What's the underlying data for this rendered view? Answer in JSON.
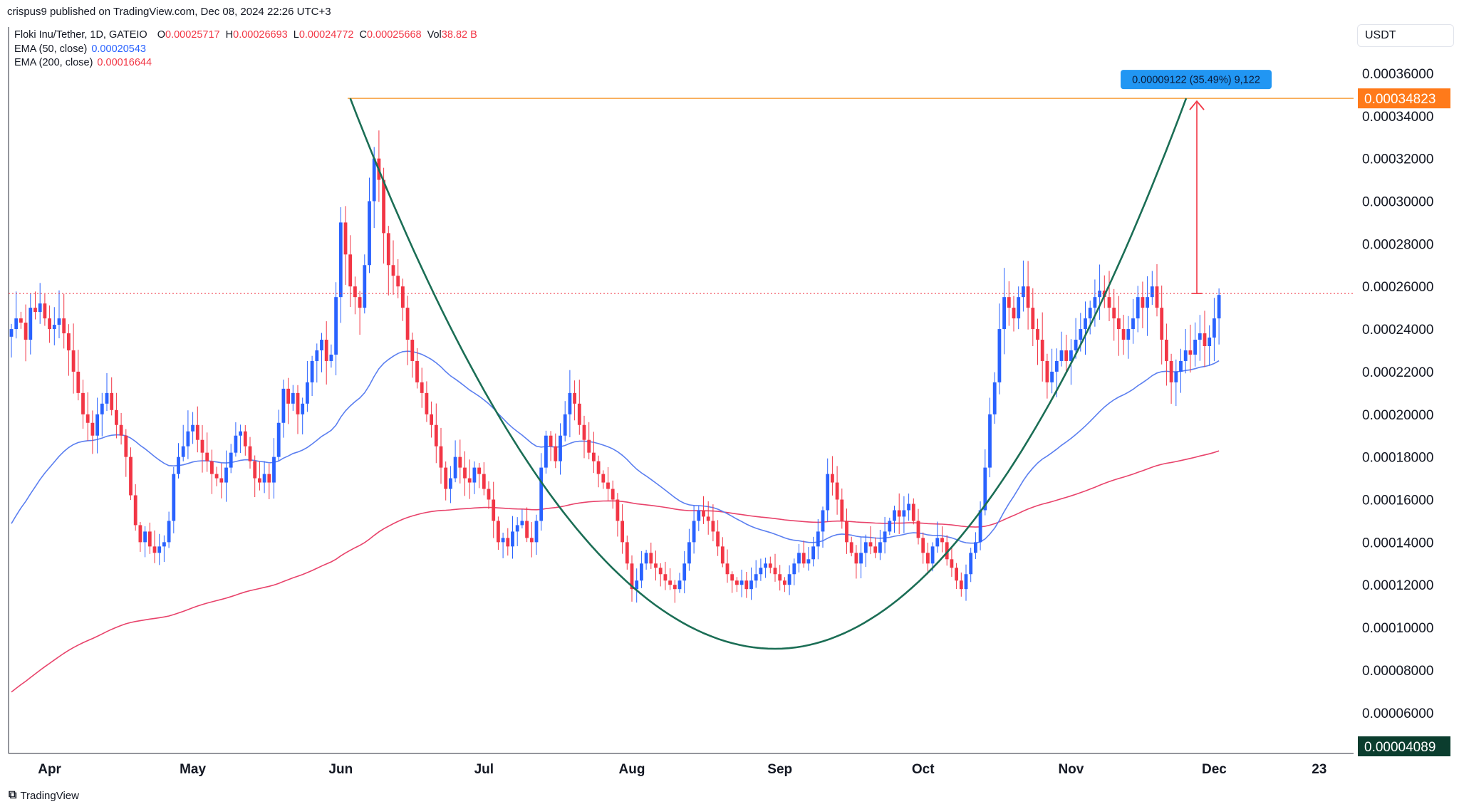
{
  "header": {
    "published_line": "crispus9 published on TradingView.com, Dec 08, 2024 22:26 UTC+3"
  },
  "legend": {
    "symbol": "Floki Inu/Tether, 1D, GATEIO",
    "ohlc": [
      {
        "key": "O",
        "value": "0.00025717"
      },
      {
        "key": "H",
        "value": "0.00026693"
      },
      {
        "key": "L",
        "value": "0.00024772"
      },
      {
        "key": "C",
        "value": "0.00025668"
      },
      {
        "key": "Vol",
        "value": "38.82 B"
      }
    ],
    "ema50_label": "EMA (50, close)",
    "ema50_value": "0.00020543",
    "ema200_label": "EMA (200, close)",
    "ema200_value": "0.00016644"
  },
  "currency": "USDT",
  "footer": {
    "brand": "TradingView"
  },
  "colors": {
    "up": "#2962ff",
    "down": "#f23645",
    "ema50": "#5b7ff0",
    "ema200": "#e8436b",
    "cup": "#1b6e55",
    "resistance": "#f7a13e",
    "measure": "#f23645",
    "price_label": "#ff7a1a",
    "measure_label": "#2196f3",
    "low_label": "#0b3d2e"
  },
  "chart_data": {
    "type": "candlestick",
    "symbol": "Floki Inu/Tether",
    "timeframe": "1D",
    "exchange": "GATEIO",
    "ylim": [
      4.089e-05,
      0.000375
    ],
    "y_ticks": [
      "0.00036000",
      "0.00034000",
      "0.00032000",
      "0.00030000",
      "0.00028000",
      "0.00026000",
      "0.00024000",
      "0.00022000",
      "0.00020000",
      "0.00018000",
      "0.00016000",
      "0.00014000",
      "0.00012000",
      "0.00010000",
      "0.00008000",
      "0.00006000"
    ],
    "x_labels": [
      {
        "label": "Apr",
        "index": 8
      },
      {
        "label": "May",
        "index": 38
      },
      {
        "label": "Jun",
        "index": 69
      },
      {
        "label": "Jul",
        "index": 99
      },
      {
        "label": "Aug",
        "index": 130
      },
      {
        "label": "Sep",
        "index": 161
      },
      {
        "label": "Oct",
        "index": 191
      },
      {
        "label": "Nov",
        "index": 222
      },
      {
        "label": "Dec",
        "index": 252
      },
      {
        "label": "23",
        "index": 274
      }
    ],
    "price_label": "0.00034823",
    "low_label": "0.00004089",
    "resistance_price": 0.00034823,
    "current_price": 0.00025668,
    "measure_label": "0.00009122 (35.49%) 9,122",
    "closes": [
      0.00024,
      0.000245,
      0.000243,
      0.000235,
      0.00025,
      0.000248,
      0.000252,
      0.000245,
      0.00024,
      0.000242,
      0.000245,
      0.000238,
      0.00023,
      0.00022,
      0.00021,
      0.0002,
      0.000196,
      0.00019,
      0.0002,
      0.000205,
      0.00021,
      0.000202,
      0.000195,
      0.00019,
      0.00018,
      0.000162,
      0.000148,
      0.00014,
      0.000145,
      0.000138,
      0.000135,
      0.000138,
      0.00014,
      0.00015,
      0.000172,
      0.00018,
      0.000185,
      0.000192,
      0.000195,
      0.000188,
      0.000182,
      0.000178,
      0.000172,
      0.00017,
      0.000168,
      0.000175,
      0.000182,
      0.00019,
      0.000192,
      0.000185,
      0.000178,
      0.00017,
      0.000168,
      0.000172,
      0.000168,
      0.00018,
      0.000196,
      0.000212,
      0.000205,
      0.00021,
      0.0002,
      0.000205,
      0.000215,
      0.000225,
      0.00023,
      0.000235,
      0.000225,
      0.000228,
      0.000255,
      0.00029,
      0.000275,
      0.00026,
      0.000255,
      0.00025,
      0.00027,
      0.0003,
      0.00032,
      0.00031,
      0.000285,
      0.00027,
      0.000265,
      0.00026,
      0.00025,
      0.000235,
      0.000225,
      0.000215,
      0.00021,
      0.0002,
      0.000195,
      0.000185,
      0.000175,
      0.000165,
      0.00017,
      0.00018,
      0.000175,
      0.00017,
      0.000168,
      0.000175,
      0.000172,
      0.000165,
      0.00016,
      0.00015,
      0.00014,
      0.000142,
      0.000138,
      0.000145,
      0.000148,
      0.00015,
      0.000142,
      0.00014,
      0.00015,
      0.000175,
      0.00019,
      0.000185,
      0.000178,
      0.00019,
      0.0002,
      0.00021,
      0.000205,
      0.000195,
      0.000188,
      0.000182,
      0.000178,
      0.000172,
      0.000168,
      0.000165,
      0.00016,
      0.00015,
      0.00014,
      0.00013,
      0.000118,
      0.000122,
      0.00013,
      0.000135,
      0.00013,
      0.000128,
      0.000125,
      0.000122,
      0.00012,
      0.000118,
      0.000122,
      0.00013,
      0.00014,
      0.00015,
      0.000155,
      0.000152,
      0.00015,
      0.000145,
      0.000138,
      0.00013,
      0.000125,
      0.000122,
      0.00012,
      0.000122,
      0.000118,
      0.000122,
      0.000125,
      0.000128,
      0.00013,
      0.000128,
      0.000125,
      0.000122,
      0.00012,
      0.000125,
      0.00013,
      0.000135,
      0.00013,
      0.000132,
      0.000138,
      0.000145,
      0.000155,
      0.000172,
      0.000168,
      0.00016,
      0.00015,
      0.00014,
      0.000135,
      0.00013,
      0.000135,
      0.00014,
      0.000138,
      0.000135,
      0.00014,
      0.000145,
      0.00015,
      0.000155,
      0.000152,
      0.000155,
      0.000158,
      0.00015,
      0.000142,
      0.000135,
      0.00013,
      0.000138,
      0.000142,
      0.00014,
      0.000132,
      0.000128,
      0.000122,
      0.000118,
      0.000125,
      0.000135,
      0.00014,
      0.000155,
      0.000175,
      0.0002,
      0.000215,
      0.00024,
      0.000255,
      0.00025,
      0.000245,
      0.000255,
      0.00026,
      0.00025,
      0.00024,
      0.000235,
      0.000225,
      0.000215,
      0.00022,
      0.000225,
      0.00023,
      0.000225,
      0.00023,
      0.000235,
      0.00024,
      0.000245,
      0.00025,
      0.000255,
      0.000258,
      0.000255,
      0.00025,
      0.000245,
      0.00024,
      0.000235,
      0.00024,
      0.000245,
      0.000255,
      0.00025,
      0.000255,
      0.00026,
      0.00025,
      0.000235,
      0.000225,
      0.000215,
      0.00022,
      0.000225,
      0.00023,
      0.000228,
      0.000235,
      0.000238,
      0.000232,
      0.000236,
      0.000245,
      0.000256
    ],
    "ema50_start": 0.000145,
    "ema200_start": 6.8e-05
  }
}
